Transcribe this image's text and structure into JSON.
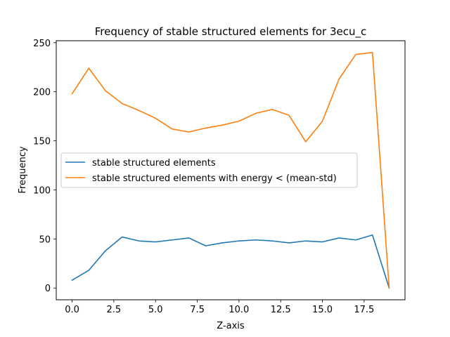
{
  "chart_data": {
    "type": "line",
    "title": "Frequency of stable structured elements for 3ecu_c",
    "xlabel": "Z-axis",
    "ylabel": "Frequency",
    "xlim": [
      -0.95,
      19.95
    ],
    "ylim": [
      -12,
      252
    ],
    "xticks": [
      0.0,
      2.5,
      5.0,
      7.5,
      10.0,
      12.5,
      15.0,
      17.5
    ],
    "xtick_labels": [
      "0.0",
      "2.5",
      "5.0",
      "7.5",
      "10.0",
      "12.5",
      "15.0",
      "17.5"
    ],
    "yticks": [
      0,
      50,
      100,
      150,
      200,
      250
    ],
    "ytick_labels": [
      "0",
      "50",
      "100",
      "150",
      "200",
      "250"
    ],
    "grid": false,
    "legend_position": "center-left",
    "x": [
      0,
      1,
      2,
      3,
      4,
      5,
      6,
      7,
      8,
      9,
      10,
      11,
      12,
      13,
      14,
      15,
      16,
      17,
      18,
      19
    ],
    "series": [
      {
        "name": "stable structured elements",
        "color": "#1f77b4",
        "values": [
          8,
          18,
          38,
          52,
          48,
          47,
          49,
          51,
          43,
          46,
          48,
          49,
          48,
          46,
          48,
          47,
          51,
          49,
          54,
          0
        ]
      },
      {
        "name": "stable structured elements with energy < (mean-std)",
        "color": "#ff7f0e",
        "values": [
          198,
          224,
          201,
          188,
          181,
          173,
          162,
          159,
          163,
          166,
          170,
          178,
          182,
          176,
          149,
          170,
          213,
          238,
          240,
          0
        ]
      }
    ]
  }
}
